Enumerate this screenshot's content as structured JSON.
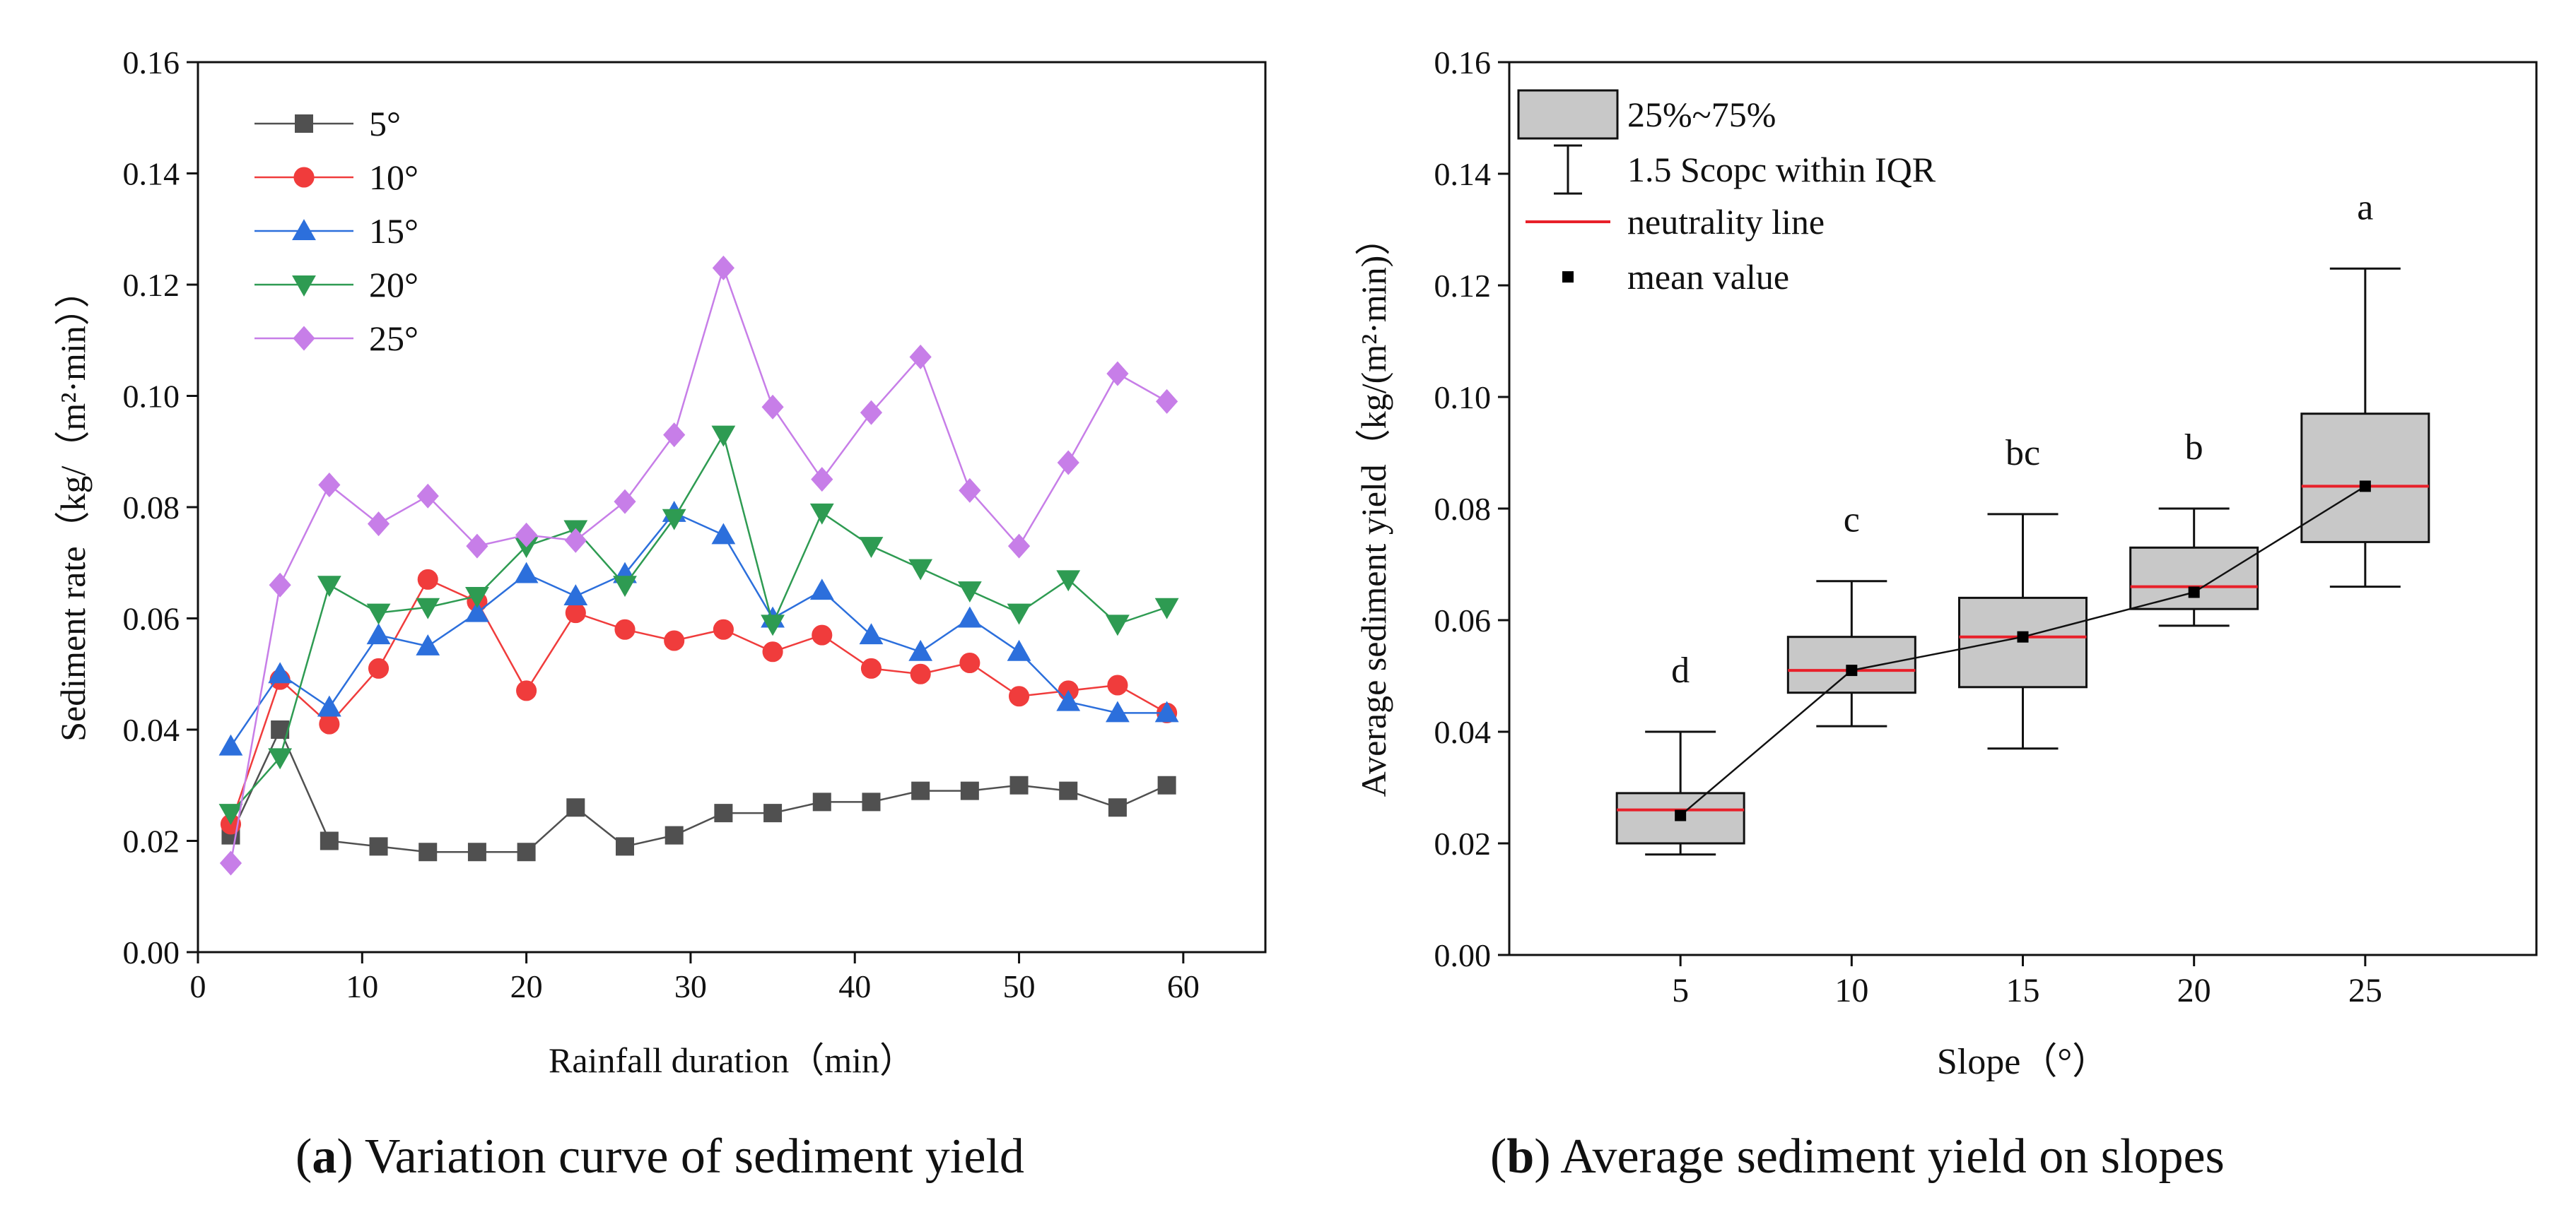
{
  "chart_data": [
    {
      "type": "line",
      "panel": "a",
      "title": "",
      "caption_letter": "a",
      "caption_text": "Variation curve of sediment yield",
      "xlabel": "Rainfall duration（min）",
      "ylabel": "Sediment rate（kg/（m²·min））",
      "xlim": [
        0,
        65
      ],
      "ylim": [
        0.0,
        0.16
      ],
      "xticks": [
        0,
        10,
        20,
        30,
        40,
        50,
        60
      ],
      "xtick_labels": [
        "0",
        "10",
        "20",
        "30",
        "40",
        "50",
        "60"
      ],
      "yticks": [
        0.0,
        0.02,
        0.04,
        0.06,
        0.08,
        0.1,
        0.12,
        0.14,
        0.16
      ],
      "ytick_labels": [
        "0.00",
        "0.02",
        "0.04",
        "0.06",
        "0.08",
        "0.10",
        "0.12",
        "0.14",
        "0.16"
      ],
      "grid": false,
      "legend_position": "top-left",
      "x": [
        2,
        5,
        8,
        11,
        14,
        17,
        20,
        23,
        26,
        29,
        32,
        35,
        38,
        41,
        44,
        47,
        50,
        53,
        56,
        59
      ],
      "series": [
        {
          "name": "5°",
          "color": "#505050",
          "marker": "square",
          "values": [
            0.021,
            0.04,
            0.02,
            0.019,
            0.018,
            0.018,
            0.018,
            0.026,
            0.019,
            0.021,
            0.025,
            0.025,
            0.027,
            0.027,
            0.029,
            0.029,
            0.03,
            0.029,
            0.026,
            0.03
          ]
        },
        {
          "name": "10°",
          "color": "#f03c3c",
          "marker": "circle",
          "values": [
            0.023,
            0.049,
            0.041,
            0.051,
            0.067,
            0.063,
            0.047,
            0.061,
            0.058,
            0.056,
            0.058,
            0.054,
            0.057,
            0.051,
            0.05,
            0.052,
            0.046,
            0.047,
            0.048,
            0.043
          ]
        },
        {
          "name": "15°",
          "color": "#2c6fdc",
          "marker": "triangle-up",
          "values": [
            0.037,
            0.05,
            0.044,
            0.057,
            0.055,
            0.061,
            0.068,
            0.064,
            0.068,
            0.079,
            0.075,
            0.06,
            0.065,
            0.057,
            0.054,
            0.06,
            0.054,
            0.045,
            0.043,
            0.043
          ]
        },
        {
          "name": "20°",
          "color": "#2e9b52",
          "marker": "triangle-down",
          "values": [
            0.025,
            0.035,
            0.066,
            0.061,
            0.062,
            0.064,
            0.073,
            0.076,
            0.066,
            0.078,
            0.093,
            0.059,
            0.079,
            0.073,
            0.069,
            0.065,
            0.061,
            0.067,
            0.059,
            0.062
          ]
        },
        {
          "name": "25°",
          "color": "#c77ee8",
          "marker": "diamond",
          "values": [
            0.016,
            0.066,
            0.084,
            0.077,
            0.082,
            0.073,
            0.075,
            0.074,
            0.081,
            0.093,
            0.123,
            0.098,
            0.085,
            0.097,
            0.107,
            0.083,
            0.073,
            0.088,
            0.104,
            0.099
          ]
        }
      ]
    },
    {
      "type": "box",
      "panel": "b",
      "title": "",
      "caption_letter": "b",
      "caption_text": "Average sediment yield on slopes",
      "xlabel": "Slope（°）",
      "ylabel": "Average  sediment yield（kg/(m²·min)）",
      "ylim": [
        0.0,
        0.16
      ],
      "yticks": [
        0.0,
        0.02,
        0.04,
        0.06,
        0.08,
        0.1,
        0.12,
        0.14,
        0.16
      ],
      "ytick_labels": [
        "0.00",
        "0.02",
        "0.04",
        "0.06",
        "0.08",
        "0.10",
        "0.12",
        "0.14",
        "0.16"
      ],
      "grid": false,
      "legend_position": "top-left",
      "categories": [
        "5",
        "10",
        "15",
        "20",
        "25"
      ],
      "boxes": [
        {
          "category": "5",
          "whisker_low": 0.018,
          "q1": 0.02,
          "median": 0.026,
          "q3": 0.029,
          "whisker_high": 0.04,
          "mean": 0.025,
          "letter": "d"
        },
        {
          "category": "10",
          "whisker_low": 0.041,
          "q1": 0.047,
          "median": 0.051,
          "q3": 0.057,
          "whisker_high": 0.067,
          "mean": 0.051,
          "letter": "c"
        },
        {
          "category": "15",
          "whisker_low": 0.037,
          "q1": 0.048,
          "median": 0.057,
          "q3": 0.064,
          "whisker_high": 0.079,
          "mean": 0.057,
          "letter": "bc"
        },
        {
          "category": "20",
          "whisker_low": 0.059,
          "q1": 0.062,
          "median": 0.066,
          "q3": 0.073,
          "whisker_high": 0.08,
          "mean": 0.065,
          "letter": "b"
        },
        {
          "category": "25",
          "whisker_low": 0.066,
          "q1": 0.074,
          "median": 0.084,
          "q3": 0.097,
          "whisker_high": 0.123,
          "mean": 0.084,
          "letter": "a"
        }
      ],
      "colors": {
        "box_fill": "#c8c8c8",
        "median_line": "#e8202a",
        "mean_marker": "#000000"
      },
      "legend": [
        {
          "kind": "box",
          "label": "25%~75%"
        },
        {
          "kind": "whisker",
          "label": "1.5 Scopc within IQR"
        },
        {
          "kind": "median",
          "label": "neutrality line"
        },
        {
          "kind": "mean",
          "label": "mean value"
        }
      ]
    }
  ]
}
